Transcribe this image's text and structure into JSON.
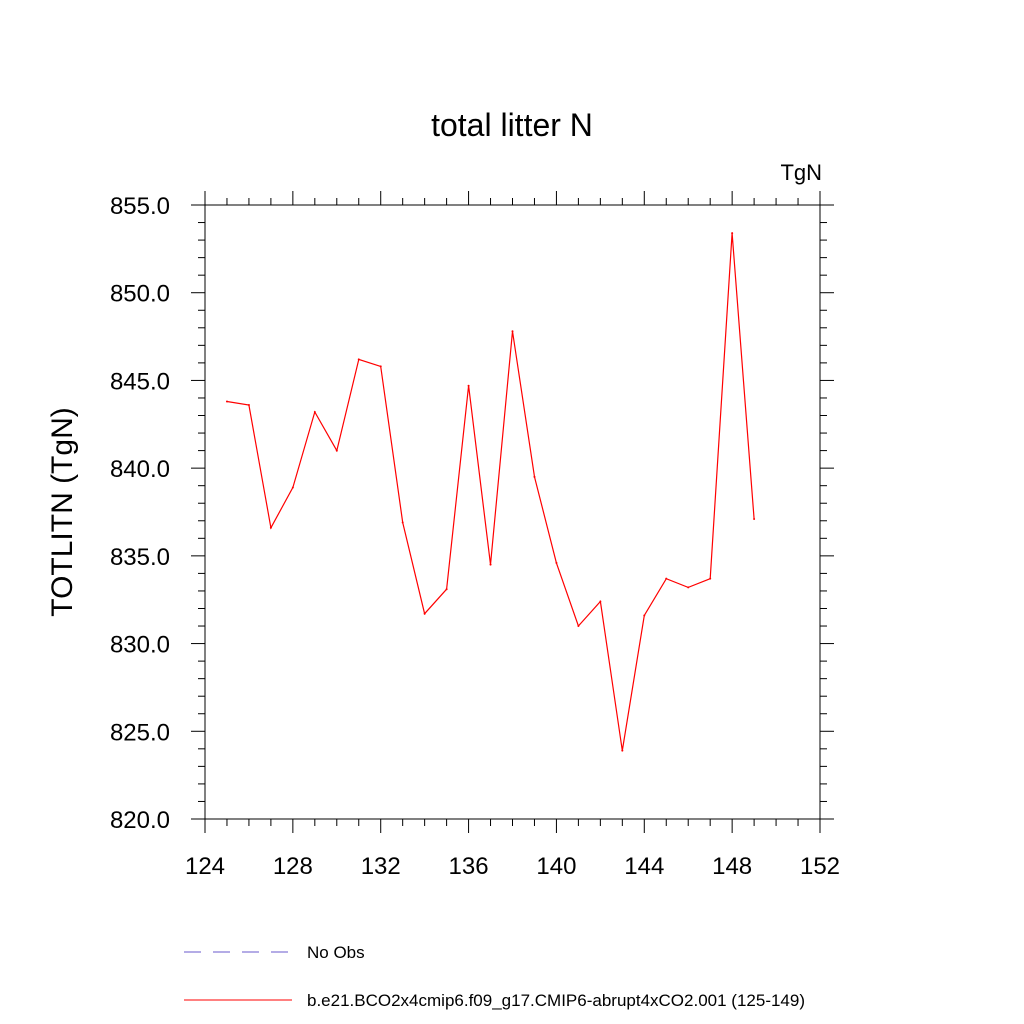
{
  "chart_data": {
    "type": "line",
    "title": "total litter N",
    "units": "TgN",
    "ylabel": "TOTLITN  (TgN)",
    "xlabel": "",
    "xlim": [
      124,
      152
    ],
    "ylim": [
      820,
      855
    ],
    "x_ticks": [
      124,
      128,
      132,
      136,
      140,
      144,
      148,
      152
    ],
    "y_ticks": [
      "820.0",
      "825.0",
      "830.0",
      "835.0",
      "840.0",
      "845.0",
      "850.0",
      "855.0"
    ],
    "grid": false,
    "legend_position": "bottom-left",
    "series": [
      {
        "name": "b.e21.BCO2x4cmip6.f09_g17.CMIP6-abrupt4xCO2.001 (125-149)",
        "color": "#ff0000",
        "style": "solid",
        "x": [
          125,
          126,
          127,
          128,
          129,
          130,
          131,
          132,
          133,
          134,
          135,
          136,
          137,
          138,
          139,
          140,
          141,
          142,
          143,
          144,
          145,
          146,
          147,
          148,
          149
        ],
        "values": [
          843.8,
          843.6,
          836.6,
          838.9,
          843.2,
          841.0,
          846.2,
          845.8,
          836.9,
          831.7,
          833.1,
          844.7,
          834.5,
          847.8,
          839.5,
          834.6,
          831.0,
          832.4,
          823.9,
          831.6,
          833.7,
          833.2,
          833.7,
          853.4,
          837.1
        ]
      }
    ],
    "legend": [
      {
        "label": "No Obs",
        "color": "#6a5acd",
        "style": "dashed"
      },
      {
        "label": "b.e21.BCO2x4cmip6.f09_g17.CMIP6-abrupt4xCO2.001 (125-149)",
        "color": "#ff0000",
        "style": "solid"
      }
    ]
  }
}
